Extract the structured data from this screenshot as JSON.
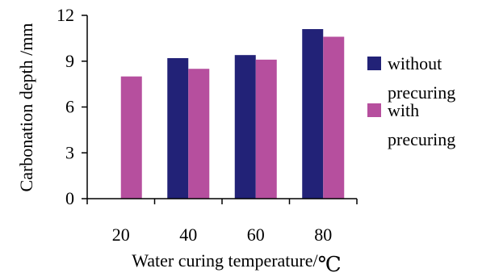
{
  "chart_data": {
    "type": "bar",
    "categories": [
      "20",
      "40",
      "60",
      "80"
    ],
    "series": [
      {
        "name": "without precuring",
        "legend_lines": [
          "without",
          "precuring"
        ],
        "color": "#222277",
        "values": [
          null,
          9.2,
          9.4,
          11.1
        ]
      },
      {
        "name": "with precuring",
        "legend_lines": [
          "with",
          "precuring"
        ],
        "color": "#b64f9e",
        "values": [
          8.0,
          8.5,
          9.1,
          10.6
        ]
      }
    ],
    "ylim": [
      0,
      12
    ],
    "yticks": [
      "0",
      "3",
      "6",
      "9",
      "12"
    ],
    "xlabel": "Water curing temperature/",
    "xlabel_unit": "℃",
    "ylabel": "Carbonation depth /mm",
    "legend_position": "right",
    "grid": false
  }
}
